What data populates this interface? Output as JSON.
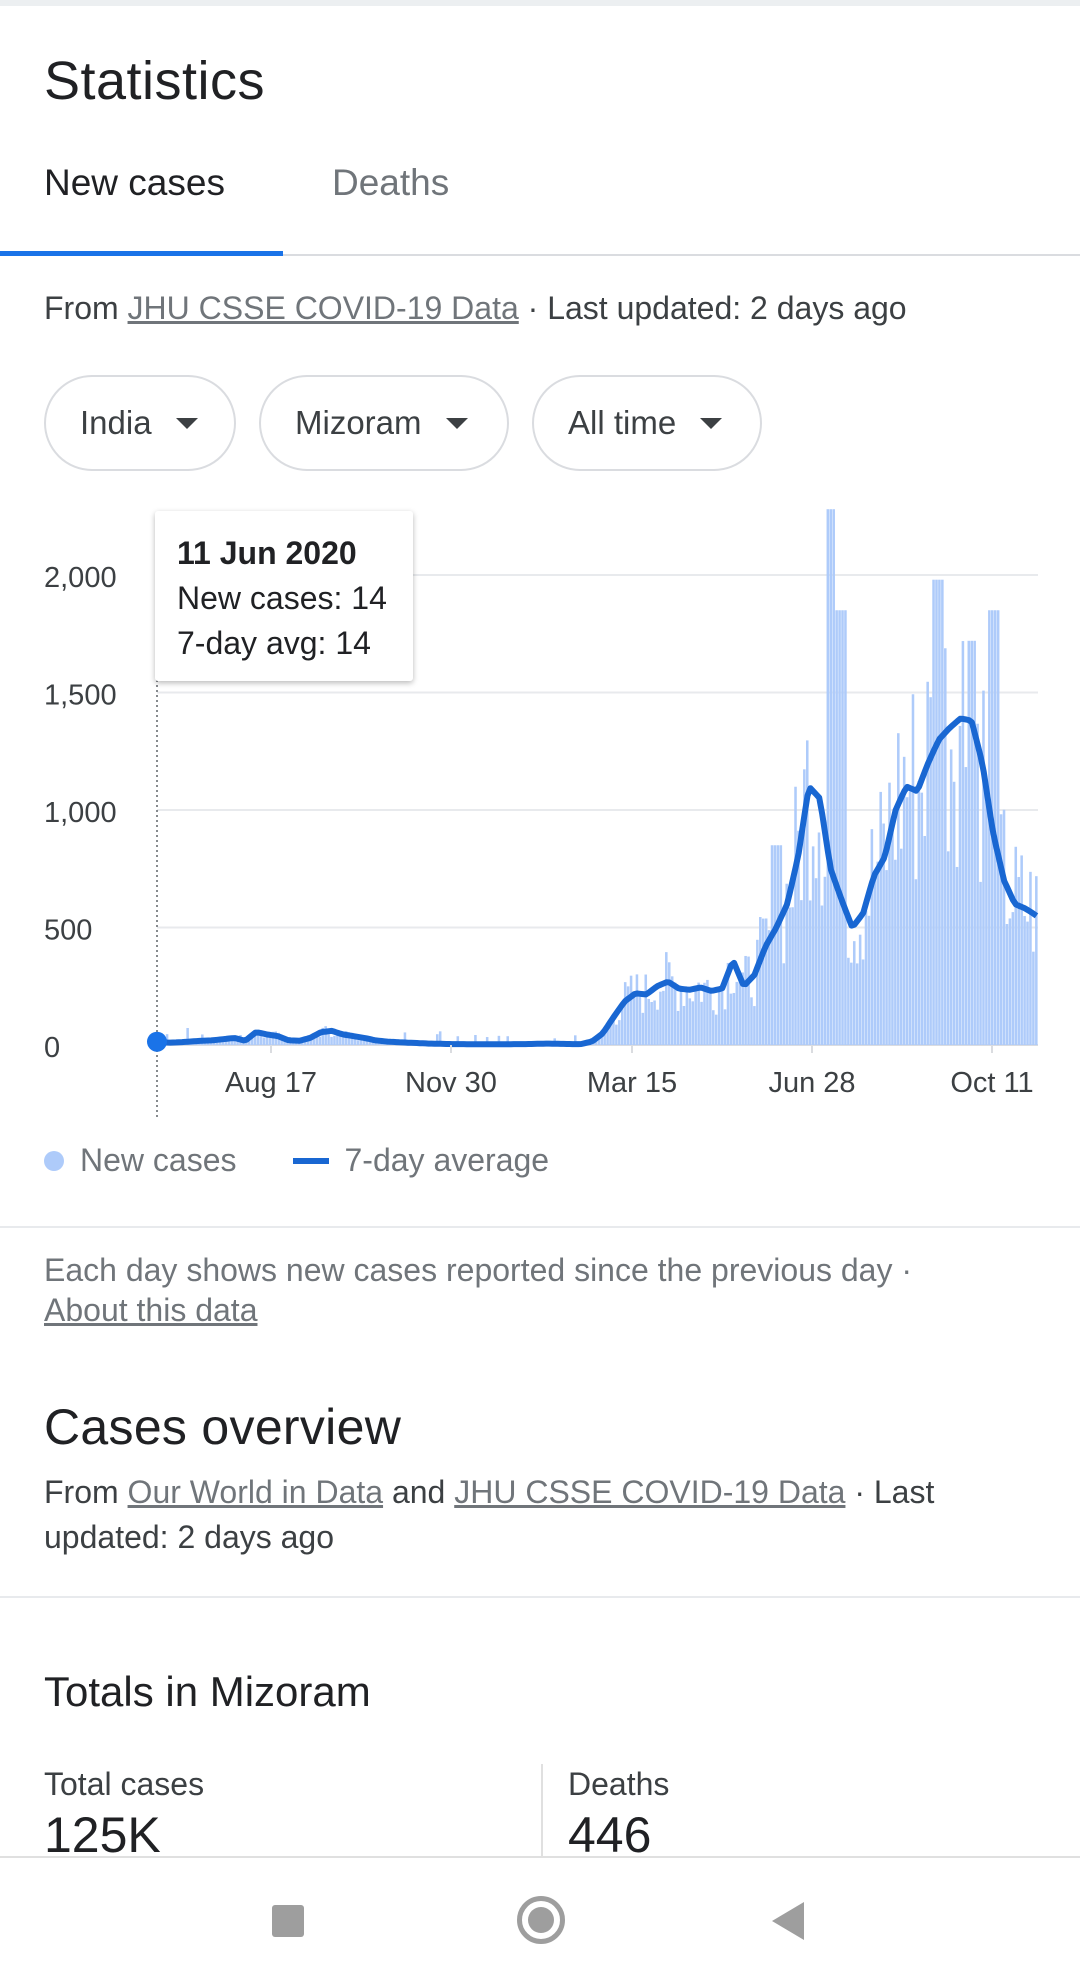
{
  "header": {
    "title": "Statistics"
  },
  "tabs": [
    {
      "label": "New cases",
      "active": true
    },
    {
      "label": "Deaths",
      "active": false
    }
  ],
  "source": {
    "prefix": "From ",
    "link": "JHU CSSE COVID-19 Data",
    "suffix": " · Last updated: 2 days ago"
  },
  "filters": [
    {
      "label": "India"
    },
    {
      "label": "Mizoram"
    },
    {
      "label": "All time"
    }
  ],
  "colors": {
    "accent": "#1a73e8",
    "bar": "#aecbfa",
    "avg_line": "#1967d2"
  },
  "tooltip": {
    "date": "11 Jun 2020",
    "new_cases": "New cases: 14",
    "avg": "7-day avg: 14"
  },
  "chart_data": {
    "type": "bar",
    "y_ticks": [
      "0",
      "500",
      "1,000",
      "1,500",
      "2,000"
    ],
    "x_ticks": [
      "Aug 17",
      "Nov 30",
      "Mar 15",
      "Jun 28",
      "Oct 11"
    ],
    "ylim": [
      0,
      2250
    ],
    "grid": true,
    "series": [
      {
        "name": "New cases",
        "style": "bars"
      },
      {
        "name": "7-day average",
        "style": "line"
      }
    ],
    "avg_profile": [
      14,
      10,
      12,
      15,
      18,
      20,
      25,
      30,
      18,
      55,
      45,
      38,
      20,
      18,
      30,
      55,
      60,
      45,
      38,
      30,
      20,
      15,
      12,
      10,
      8,
      6,
      5,
      4,
      4,
      3,
      3,
      3,
      3,
      4,
      4,
      5,
      6,
      5,
      4,
      4,
      15,
      50,
      120,
      185,
      220,
      215,
      250,
      270,
      240,
      235,
      245,
      230,
      240,
      360,
      250,
      300,
      420,
      500,
      600,
      800,
      1100,
      1050,
      750,
      620,
      500,
      560,
      720,
      800,
      1000,
      1100,
      1080,
      1200,
      1300,
      1350,
      1390,
      1380,
      1200,
      900,
      700,
      600,
      580,
      550
    ],
    "bar_noise_peaks": [
      {
        "i": 62,
        "v": 2280
      },
      {
        "i": 63,
        "v": 1850
      },
      {
        "i": 72,
        "v": 1980
      },
      {
        "i": 77,
        "v": 1850
      },
      {
        "i": 75,
        "v": 1720
      },
      {
        "i": 57,
        "v": 850
      }
    ]
  },
  "legend": {
    "new_cases": "New cases",
    "avg": "7-day average"
  },
  "note": {
    "text": "Each day shows new cases reported since the previous day  · ",
    "link": "About this data"
  },
  "overview": {
    "title": "Cases overview",
    "from": "From ",
    "link1": "Our World in Data",
    "and": " and ",
    "link2": "JHU CSSE COVID-19 Data",
    "suffix": " · Last updated: 2 days ago"
  },
  "totals": {
    "title": "Totals in Mizoram",
    "total_cases_label": "Total cases",
    "total_cases_value": "125K",
    "deaths_label": "Deaths",
    "deaths_value": "446"
  }
}
